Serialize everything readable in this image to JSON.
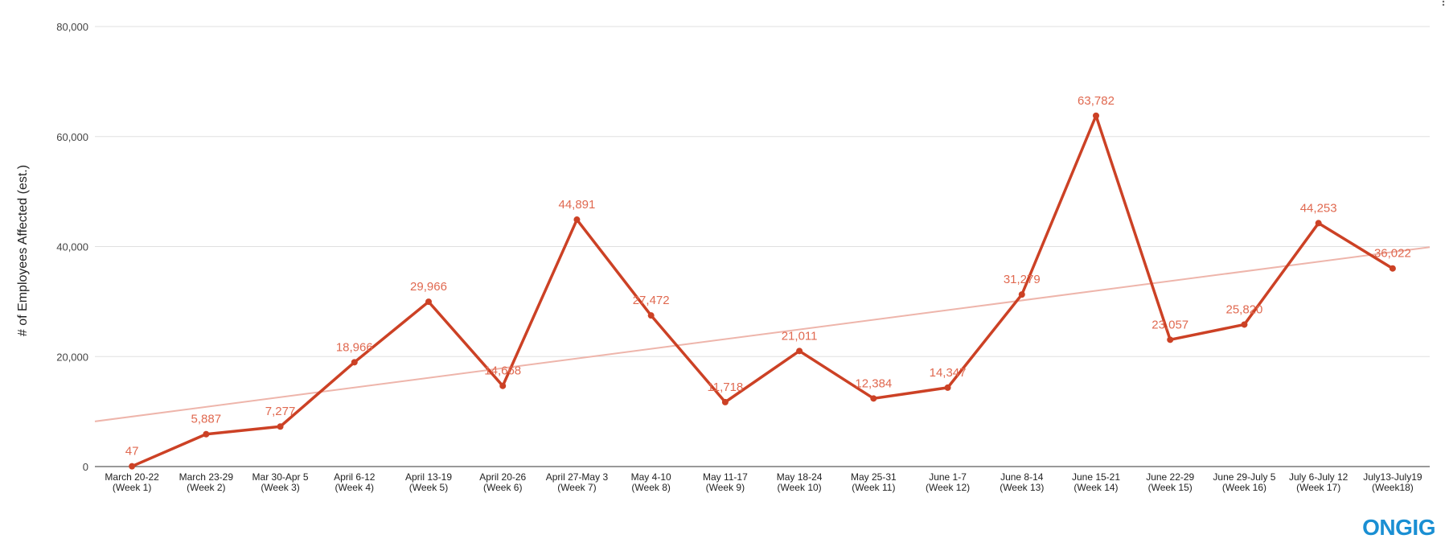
{
  "chart_data": {
    "type": "line",
    "title": "",
    "xlabel": "",
    "ylabel": "# of Employees Affected (est.)",
    "ylim": [
      0,
      80000
    ],
    "yticks": [
      0,
      20000,
      40000,
      60000,
      80000
    ],
    "ytick_labels": [
      "0",
      "20,000",
      "40,000",
      "60,000",
      "80,000"
    ],
    "grid": true,
    "legend": "none",
    "categories": [
      [
        "March 20-22",
        "(Week 1)"
      ],
      [
        "March 23-29",
        "(Week 2)"
      ],
      [
        "Mar 30-Apr 5",
        "(Week 3)"
      ],
      [
        "April 6-12",
        "(Week 4)"
      ],
      [
        "April 13-19",
        "(Week 5)"
      ],
      [
        "April 20-26",
        "(Week 6)"
      ],
      [
        "April 27-May 3",
        "(Week 7)"
      ],
      [
        "May 4-10",
        "(Week 8)"
      ],
      [
        "May 11-17",
        "(Week 9)"
      ],
      [
        "May 18-24",
        "(Week 10)"
      ],
      [
        "May 25-31",
        "(Week 11)"
      ],
      [
        "June 1-7",
        "(Week 12)"
      ],
      [
        "June 8-14",
        "(Week 13)"
      ],
      [
        "June 15-21",
        "(Week 14)"
      ],
      [
        "June 22-29",
        "(Week 15)"
      ],
      [
        "June 29-July 5",
        "(Week 16)"
      ],
      [
        "July 6-July 12",
        "(Week 17)"
      ],
      [
        "July13-July19",
        "(Week18)"
      ]
    ],
    "series": [
      {
        "values": [
          47,
          5887,
          7277,
          18966,
          29966,
          14668,
          44891,
          27472,
          11718,
          21011,
          12384,
          14347,
          31279,
          63782,
          23057,
          25820,
          44253,
          36022
        ],
        "labels": [
          "47",
          "5,887",
          "7,277",
          "18,966",
          "29,966",
          "14,668",
          "44,891",
          "27,472",
          "11,718",
          "21,011",
          "12,384",
          "14,347",
          "31,279",
          "63,782",
          "23,057",
          "25,820",
          "44,253",
          "36,022"
        ],
        "color": "#cc4125",
        "label_color": "#e06950"
      }
    ],
    "trendline": {
      "type": "linear",
      "color": "#eeb5ab"
    }
  },
  "logo": {
    "text": "ONGIG",
    "color": "#1a8fd3"
  },
  "icons": {
    "menu": "vertical-dots-icon"
  }
}
